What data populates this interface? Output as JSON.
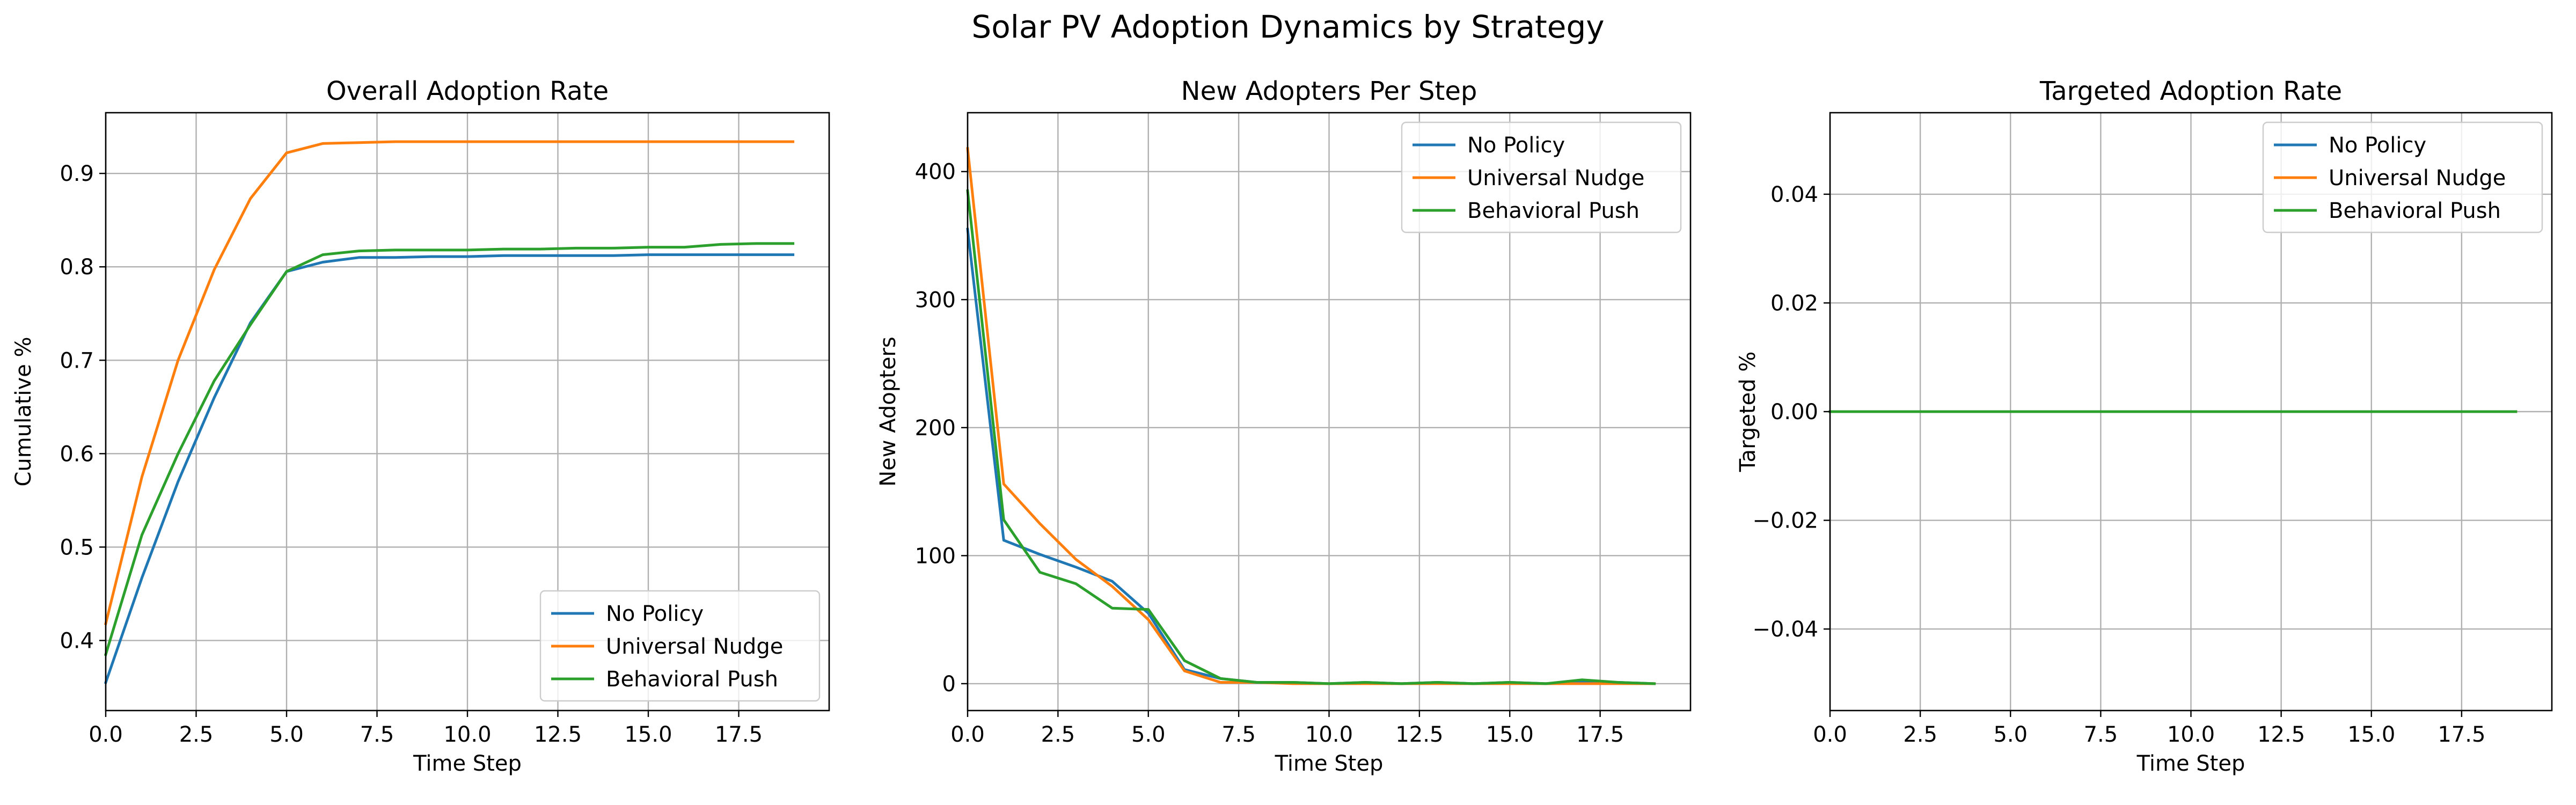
{
  "figure_title": "Solar PV Adoption Dynamics by Strategy",
  "colors": {
    "no_policy": "#1f77b4",
    "universal_nudge": "#ff7f0e",
    "behavioral_push": "#2ca02c",
    "grid": "#b0b0b0"
  },
  "chart_data": [
    {
      "type": "line",
      "title": "Overall Adoption Rate",
      "xlabel": "Time Step",
      "ylabel": "Cumulative %",
      "xlim": [
        0,
        20
      ],
      "ylim": [
        0.325,
        0.965
      ],
      "xticks": [
        0,
        2.5,
        5,
        7.5,
        10,
        12.5,
        15,
        17.5
      ],
      "xtick_labels": [
        "0.0",
        "2.5",
        "5.0",
        "7.5",
        "10.0",
        "12.5",
        "15.0",
        "17.5"
      ],
      "yticks": [
        0.4,
        0.5,
        0.6,
        0.7,
        0.8,
        0.9
      ],
      "ytick_labels": [
        "0.4",
        "0.5",
        "0.6",
        "0.7",
        "0.8",
        "0.9"
      ],
      "grid": true,
      "legend": "lower-right",
      "x": [
        0,
        1,
        2,
        3,
        4,
        5,
        6,
        7,
        8,
        9,
        10,
        11,
        12,
        13,
        14,
        15,
        16,
        17,
        18,
        19
      ],
      "series": [
        {
          "name": "No Policy",
          "color": "#1f77b4",
          "values": [
            0.355,
            0.467,
            0.57,
            0.66,
            0.74,
            0.795,
            0.805,
            0.81,
            0.81,
            0.811,
            0.811,
            0.812,
            0.812,
            0.812,
            0.812,
            0.813,
            0.813,
            0.813,
            0.813,
            0.813
          ]
        },
        {
          "name": "Universal Nudge",
          "color": "#ff7f0e",
          "values": [
            0.418,
            0.575,
            0.7,
            0.797,
            0.873,
            0.922,
            0.932,
            0.933,
            0.934,
            0.934,
            0.934,
            0.934,
            0.934,
            0.934,
            0.934,
            0.934,
            0.934,
            0.934,
            0.934,
            0.934
          ]
        },
        {
          "name": "Behavioral Push",
          "color": "#2ca02c",
          "values": [
            0.385,
            0.513,
            0.6,
            0.678,
            0.738,
            0.795,
            0.813,
            0.817,
            0.818,
            0.818,
            0.818,
            0.819,
            0.819,
            0.82,
            0.82,
            0.821,
            0.821,
            0.824,
            0.825,
            0.825
          ]
        }
      ]
    },
    {
      "type": "line",
      "title": "New Adopters Per Step",
      "xlabel": "Time Step",
      "ylabel": "New Adopters",
      "xlim": [
        0,
        20
      ],
      "ylim": [
        -21,
        446
      ],
      "xticks": [
        0,
        2.5,
        5,
        7.5,
        10,
        12.5,
        15,
        17.5
      ],
      "xtick_labels": [
        "0.0",
        "2.5",
        "5.0",
        "7.5",
        "10.0",
        "12.5",
        "15.0",
        "17.5"
      ],
      "yticks": [
        0,
        100,
        200,
        300,
        400
      ],
      "ytick_labels": [
        "0",
        "100",
        "200",
        "300",
        "400"
      ],
      "grid": true,
      "legend": "upper-right",
      "x": [
        0,
        1,
        2,
        3,
        4,
        5,
        6,
        7,
        8,
        9,
        10,
        11,
        12,
        13,
        14,
        15,
        16,
        17,
        18,
        19
      ],
      "series": [
        {
          "name": "No Policy",
          "color": "#1f77b4",
          "values": [
            355,
            112,
            101,
            91,
            80,
            55,
            11,
            4,
            1,
            1,
            0,
            1,
            0,
            1,
            0,
            1,
            0,
            1,
            1,
            0
          ]
        },
        {
          "name": "Universal Nudge",
          "color": "#ff7f0e",
          "values": [
            418,
            156,
            125,
            97,
            76,
            50,
            10,
            1,
            1,
            0,
            0,
            0,
            0,
            0,
            0,
            0,
            0,
            0,
            0,
            0
          ]
        },
        {
          "name": "Behavioral Push",
          "color": "#2ca02c",
          "values": [
            385,
            128,
            87,
            78,
            59,
            58,
            18,
            4,
            1,
            1,
            0,
            1,
            0,
            1,
            0,
            1,
            0,
            3,
            1,
            0
          ]
        }
      ]
    },
    {
      "type": "line",
      "title": "Targeted Adoption Rate",
      "xlabel": "Time Step",
      "ylabel": "Targeted %",
      "xlim": [
        0,
        20
      ],
      "ylim": [
        -0.055,
        0.055
      ],
      "xticks": [
        0,
        2.5,
        5,
        7.5,
        10,
        12.5,
        15,
        17.5
      ],
      "xtick_labels": [
        "0.0",
        "2.5",
        "5.0",
        "7.5",
        "10.0",
        "12.5",
        "15.0",
        "17.5"
      ],
      "yticks": [
        -0.04,
        -0.02,
        0,
        0.02,
        0.04
      ],
      "ytick_labels": [
        "−0.04",
        "−0.02",
        "0.00",
        "0.02",
        "0.04"
      ],
      "grid": true,
      "legend": "upper-right",
      "x": [
        0,
        1,
        2,
        3,
        4,
        5,
        6,
        7,
        8,
        9,
        10,
        11,
        12,
        13,
        14,
        15,
        16,
        17,
        18,
        19
      ],
      "series": [
        {
          "name": "No Policy",
          "color": "#1f77b4",
          "values": [
            0,
            0,
            0,
            0,
            0,
            0,
            0,
            0,
            0,
            0,
            0,
            0,
            0,
            0,
            0,
            0,
            0,
            0,
            0,
            0
          ]
        },
        {
          "name": "Universal Nudge",
          "color": "#ff7f0e",
          "values": [
            0,
            0,
            0,
            0,
            0,
            0,
            0,
            0,
            0,
            0,
            0,
            0,
            0,
            0,
            0,
            0,
            0,
            0,
            0,
            0
          ]
        },
        {
          "name": "Behavioral Push",
          "color": "#2ca02c",
          "values": [
            0,
            0,
            0,
            0,
            0,
            0,
            0,
            0,
            0,
            0,
            0,
            0,
            0,
            0,
            0,
            0,
            0,
            0,
            0,
            0
          ]
        }
      ]
    }
  ]
}
